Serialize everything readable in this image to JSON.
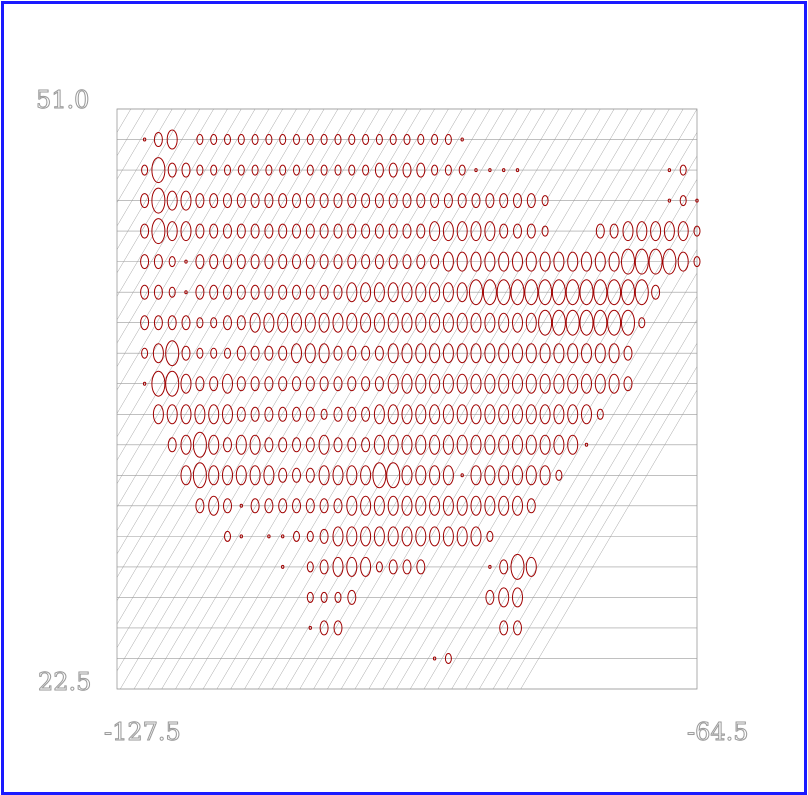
{
  "chart_data": {
    "type": "scatter",
    "title": "",
    "xlabel": "",
    "ylabel": "",
    "xlim": [
      -127.5,
      -64.5
    ],
    "ylim": [
      22.5,
      51.0
    ],
    "x_tick_labels": [
      "-127.5",
      "-64.5"
    ],
    "y_tick_labels": [
      "22.5",
      "51.0"
    ],
    "grid": true,
    "marker": "ellipse",
    "colors": {
      "marker": "#a00000",
      "grid": "#9a9a9a",
      "frame": "#1a1aff",
      "label": "#9a9a9a"
    },
    "x_step_deg": 1.5,
    "rows": [
      {
        "lat": 49.5,
        "start_lon": -124.5,
        "sizes": [
          1,
          3,
          4,
          0,
          2,
          2,
          2,
          2,
          2,
          2,
          2,
          2,
          2,
          2,
          2,
          2,
          2,
          2,
          2,
          2,
          2,
          2,
          2,
          1
        ]
      },
      {
        "lat": 48.0,
        "start_lon": -124.5,
        "sizes": [
          2,
          5,
          3,
          3,
          2,
          2,
          2,
          2,
          2,
          2,
          2,
          2,
          2,
          2,
          2,
          2,
          2,
          3,
          3,
          3,
          3,
          2,
          2,
          2,
          1,
          1,
          1,
          1,
          0,
          0,
          0,
          0,
          0,
          0,
          0,
          0,
          0,
          0,
          1,
          2
        ]
      },
      {
        "lat": 46.5,
        "start_lon": -124.5,
        "sizes": [
          3,
          5,
          4,
          4,
          3,
          3,
          3,
          3,
          3,
          3,
          3,
          3,
          3,
          3,
          3,
          3,
          3,
          3,
          3,
          3,
          3,
          3,
          3,
          3,
          3,
          3,
          3,
          3,
          3,
          2,
          0,
          0,
          0,
          0,
          0,
          0,
          0,
          0,
          1,
          2,
          1
        ]
      },
      {
        "lat": 45.0,
        "start_lon": -124.5,
        "sizes": [
          3,
          5,
          4,
          4,
          3,
          3,
          3,
          3,
          3,
          3,
          3,
          3,
          3,
          3,
          3,
          3,
          3,
          3,
          3,
          3,
          3,
          4,
          4,
          4,
          4,
          4,
          3,
          3,
          3,
          2,
          0,
          0,
          0,
          3,
          3,
          4,
          4,
          4,
          4,
          4,
          2
        ]
      },
      {
        "lat": 43.5,
        "start_lon": -124.5,
        "sizes": [
          3,
          3,
          2,
          1,
          3,
          3,
          3,
          3,
          3,
          3,
          3,
          3,
          3,
          3,
          3,
          3,
          3,
          3,
          3,
          3,
          3,
          3,
          4,
          4,
          4,
          4,
          4,
          4,
          4,
          4,
          4,
          4,
          4,
          4,
          4,
          5,
          5,
          5,
          5,
          4,
          2
        ]
      },
      {
        "lat": 42.0,
        "start_lon": -124.5,
        "sizes": [
          3,
          3,
          2,
          1,
          3,
          3,
          3,
          3,
          3,
          3,
          3,
          3,
          3,
          3,
          3,
          4,
          4,
          4,
          4,
          4,
          4,
          4,
          4,
          4,
          5,
          5,
          5,
          5,
          5,
          5,
          5,
          5,
          5,
          5,
          5,
          5,
          5,
          3
        ]
      },
      {
        "lat": 40.5,
        "start_lon": -124.5,
        "sizes": [
          3,
          3,
          3,
          3,
          2,
          2,
          3,
          3,
          4,
          4,
          4,
          4,
          4,
          4,
          4,
          4,
          4,
          4,
          4,
          4,
          4,
          4,
          4,
          4,
          4,
          4,
          4,
          4,
          4,
          5,
          5,
          5,
          5,
          5,
          5,
          5,
          2
        ]
      },
      {
        "lat": 39.0,
        "start_lon": -124.5,
        "sizes": [
          2,
          4,
          5,
          3,
          2,
          2,
          2,
          3,
          3,
          3,
          3,
          4,
          4,
          4,
          3,
          3,
          3,
          3,
          4,
          4,
          4,
          4,
          4,
          4,
          4,
          4,
          4,
          4,
          4,
          4,
          4,
          4,
          4,
          4,
          4,
          3
        ]
      },
      {
        "lat": 37.5,
        "start_lon": -124.5,
        "sizes": [
          1,
          5,
          5,
          4,
          3,
          3,
          4,
          3,
          3,
          3,
          3,
          3,
          3,
          3,
          3,
          3,
          3,
          3,
          4,
          4,
          4,
          4,
          4,
          4,
          4,
          4,
          4,
          4,
          4,
          4,
          4,
          4,
          4,
          4,
          4,
          3
        ]
      },
      {
        "lat": 36.0,
        "start_lon": -123.0,
        "sizes": [
          4,
          4,
          4,
          4,
          4,
          4,
          3,
          3,
          3,
          3,
          3,
          3,
          2,
          3,
          3,
          3,
          4,
          4,
          4,
          4,
          4,
          4,
          4,
          4,
          4,
          4,
          4,
          4,
          4,
          4,
          4,
          4,
          2
        ]
      },
      {
        "lat": 34.5,
        "start_lon": -121.5,
        "sizes": [
          3,
          4,
          5,
          4,
          3,
          4,
          4,
          3,
          3,
          3,
          3,
          4,
          3,
          3,
          3,
          4,
          4,
          4,
          4,
          4,
          4,
          4,
          4,
          4,
          4,
          4,
          4,
          4,
          4,
          4,
          1
        ]
      },
      {
        "lat": 33.0,
        "start_lon": -120.0,
        "sizes": [
          4,
          5,
          4,
          4,
          4,
          4,
          4,
          3,
          3,
          3,
          4,
          4,
          4,
          4,
          5,
          5,
          4,
          4,
          4,
          4,
          1,
          4,
          4,
          4,
          4,
          4,
          4,
          2
        ]
      },
      {
        "lat": 31.5,
        "start_lon": -118.5,
        "sizes": [
          3,
          4,
          3,
          1,
          3,
          3,
          3,
          3,
          3,
          3,
          3,
          4,
          4,
          4,
          4,
          4,
          4,
          4,
          4,
          4,
          4,
          4,
          4,
          4,
          3
        ]
      },
      {
        "lat": 30.0,
        "start_lon": -115.5,
        "sizes": [
          2,
          1,
          0,
          1,
          1,
          2,
          2,
          3,
          4,
          4,
          4,
          4,
          4,
          4,
          4,
          4,
          4,
          4,
          4,
          2
        ]
      },
      {
        "lat": 28.5,
        "start_lon": -109.5,
        "sizes": [
          1,
          0,
          2,
          3,
          4,
          4,
          4,
          2,
          3,
          3,
          3,
          0,
          0,
          0,
          0,
          1,
          3,
          5,
          4
        ]
      },
      {
        "lat": 27.0,
        "start_lon": -106.5,
        "sizes": [
          2,
          2,
          2,
          3,
          0,
          0,
          0,
          0,
          0,
          0,
          0,
          0,
          0,
          3,
          4,
          4
        ]
      },
      {
        "lat": 25.5,
        "start_lon": -106.5,
        "sizes": [
          1,
          3,
          3,
          0,
          0,
          0,
          0,
          0,
          0,
          0,
          0,
          0,
          0,
          0,
          3,
          3
        ]
      },
      {
        "lat": 24.0,
        "start_lon": -93.0,
        "sizes": [
          1,
          2
        ]
      }
    ]
  }
}
